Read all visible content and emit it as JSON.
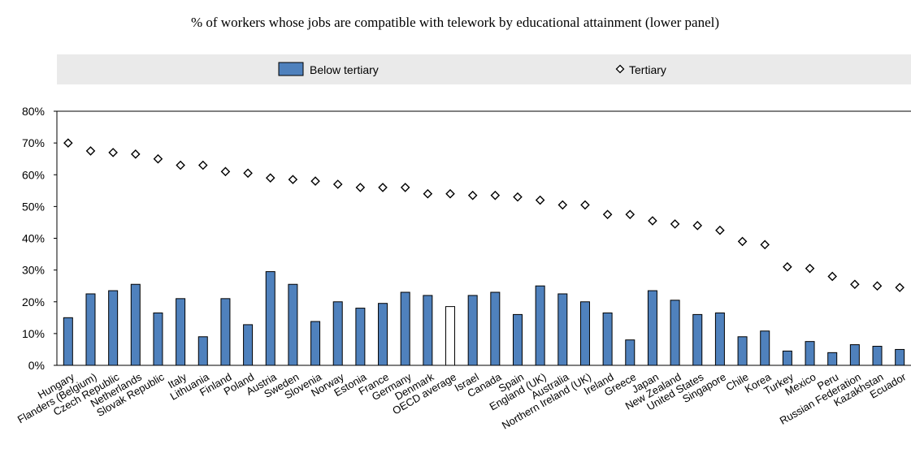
{
  "chart_data": {
    "type": "bar",
    "title": "% of workers whose jobs are compatible with telework by educational attainment (lower panel)",
    "ylim": [
      0,
      80
    ],
    "yticks": [
      "0%",
      "10%",
      "20%",
      "30%",
      "40%",
      "50%",
      "60%",
      "70%",
      "80%"
    ],
    "legend_position": "top",
    "highlight_category": "OECD average",
    "categories": [
      "Hungary",
      "Flanders (Belgium)",
      "Czech Republic",
      "Netherlands",
      "Slovak Republic",
      "Italy",
      "Lithuania",
      "Finland",
      "Poland",
      "Austria",
      "Sweden",
      "Slovenia",
      "Norway",
      "Estonia",
      "France",
      "Germany",
      "Denmark",
      "OECD average",
      "Israel",
      "Canada",
      "Spain",
      "England (UK)",
      "Australia",
      "Northern Ireland (UK)",
      "Ireland",
      "Greece",
      "Japan",
      "New Zealand",
      "United States",
      "Singapore",
      "Chile",
      "Korea",
      "Turkey",
      "Mexico",
      "Peru",
      "Russian Federation",
      "Kazakhstan",
      "Ecuador"
    ],
    "series": [
      {
        "name": "Below tertiary",
        "kind": "bar",
        "color": "#4f81bd",
        "values": [
          15,
          22.5,
          23.5,
          25.5,
          16.5,
          21,
          9,
          21,
          12.8,
          29.5,
          25.5,
          13.8,
          20,
          18,
          19.5,
          23,
          22,
          18.5,
          22,
          23,
          16,
          25,
          22.5,
          20,
          16.5,
          8,
          23.5,
          20.5,
          16,
          16.5,
          9,
          10.8,
          4.5,
          7.5,
          4,
          6.5,
          6,
          5
        ]
      },
      {
        "name": "Tertiary",
        "kind": "marker",
        "marker": "diamond",
        "values": [
          70,
          67.5,
          67,
          66.5,
          65,
          63,
          63,
          61,
          60.5,
          59,
          58.5,
          58,
          57,
          56,
          56,
          56,
          54,
          54,
          53.5,
          53.5,
          53,
          52,
          50.5,
          50.5,
          47.5,
          47.5,
          45.5,
          44.5,
          44,
          42.5,
          39,
          38,
          31,
          30.5,
          28,
          25.5,
          25,
          24.5
        ]
      }
    ],
    "highlight_color": "#ffffff"
  }
}
